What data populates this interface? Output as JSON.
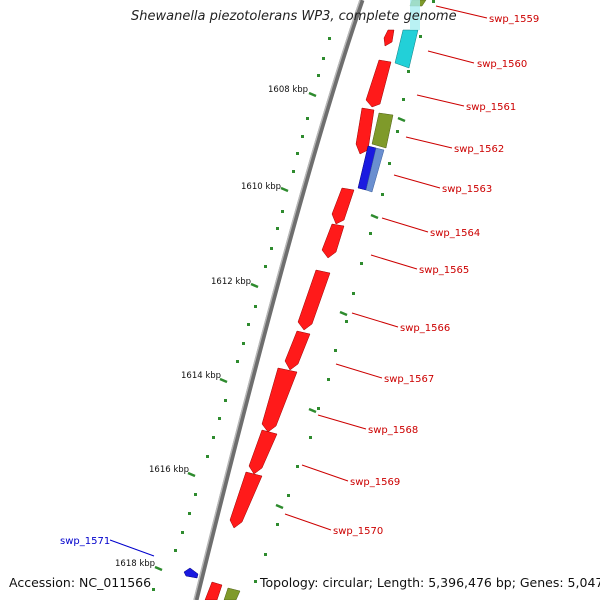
{
  "title": "Shewanella piezotolerans WP3, complete genome",
  "footer": {
    "accession": "Accession: NC_011566",
    "summary": "Topology: circular; Length: 5,396,476 bp; Genes: 5,047"
  },
  "colors": {
    "backbone": "#8a8a8a",
    "red": "#ff1a1a",
    "cyan": "#22d0d8",
    "olive": "#7f9a2a",
    "blue": "#1a1ae0",
    "steelblue": "#6a8fd0",
    "tick": "#2e8b2e",
    "label_red": "#cc0000",
    "label_blue": "#0000cc"
  },
  "ruler": [
    {
      "label": "1608 kbp"
    },
    {
      "label": "1610 kbp"
    },
    {
      "label": "1612 kbp"
    },
    {
      "label": "1614 kbp"
    },
    {
      "label": "1616 kbp"
    },
    {
      "label": "1618 kbp"
    }
  ],
  "genes": [
    {
      "label": "swp_1559"
    },
    {
      "label": "swp_1560"
    },
    {
      "label": "swp_1561"
    },
    {
      "label": "swp_1562"
    },
    {
      "label": "swp_1563"
    },
    {
      "label": "swp_1564"
    },
    {
      "label": "swp_1565"
    },
    {
      "label": "swp_1566"
    },
    {
      "label": "swp_1567"
    },
    {
      "label": "swp_1568"
    },
    {
      "label": "swp_1569"
    },
    {
      "label": "swp_1570"
    },
    {
      "label": "swp_1571"
    }
  ]
}
